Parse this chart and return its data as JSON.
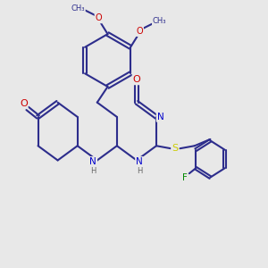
{
  "background_color": "#e8e8e8",
  "bond_color": "#2d2d8c",
  "bond_width": 1.5,
  "atom_colors": {
    "N": "#0000cc",
    "O": "#cc0000",
    "S": "#cccc00",
    "F": "#008800",
    "C": "#2d2d8c",
    "H": "#666666"
  },
  "figsize": [
    3.0,
    3.0
  ],
  "dpi": 100
}
